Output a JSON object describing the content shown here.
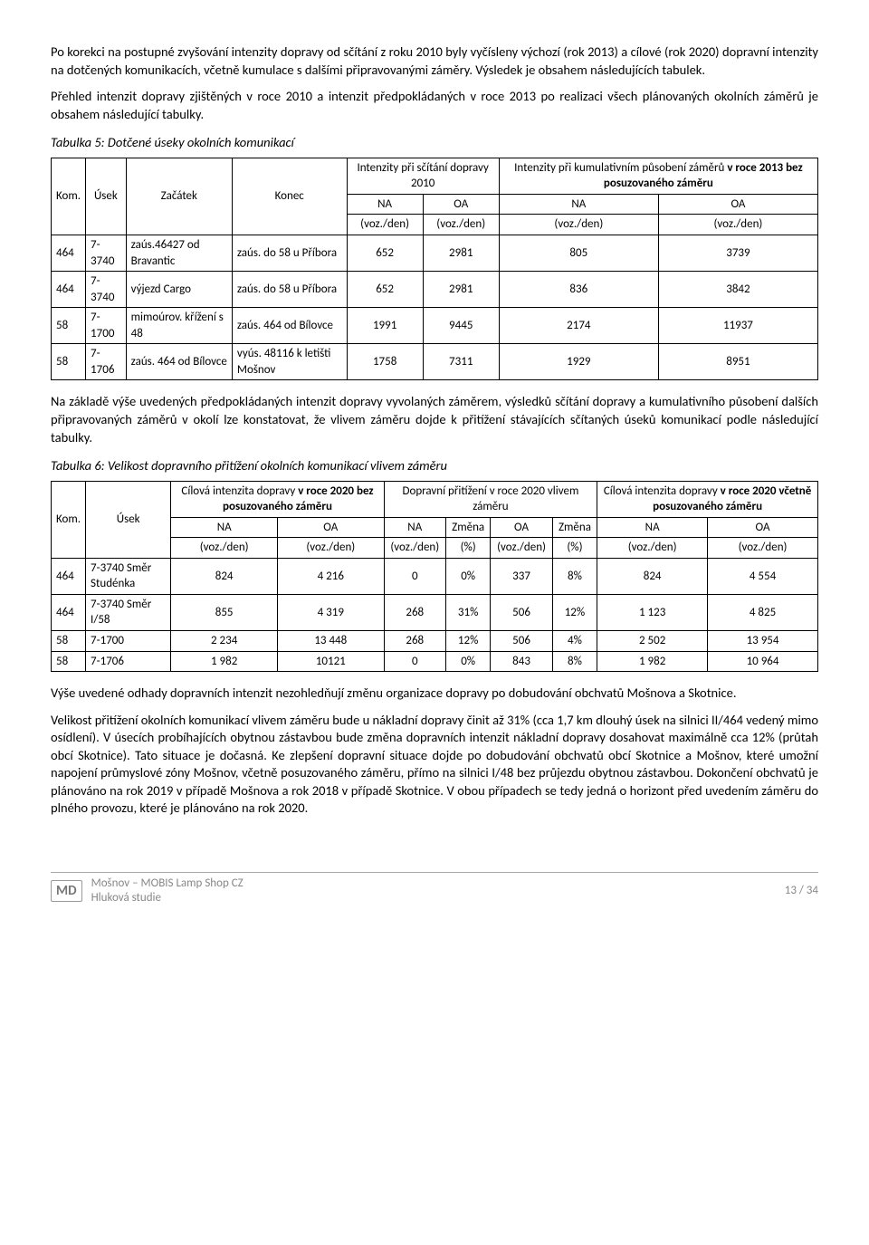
{
  "para1": "Po korekci na postupné zvyšování intenzity dopravy od sčítání z roku 2010 byly vyčísleny výchozí (rok 2013) a cílové (rok 2020) dopravní intenzity na dotčených komunikacích, včetně kumulace s dalšími připravovanými záměry. Výsledek je obsahem následujících tabulek.",
  "para2": "Přehled intenzit dopravy zjištěných v roce 2010 a intenzit předpokládaných v roce 2013 po realizaci všech plánovaných okolních záměrů je obsahem následující tabulky.",
  "table5_title": "Tabulka 5: Dotčené úseky okolních komunikací",
  "t5": {
    "h_kom": "Kom.",
    "h_usek": "Úsek",
    "h_zac": "Začátek",
    "h_kon": "Konec",
    "h_int2010": "Intenzity při sčítání dopravy 2010",
    "h_int2013_a": "Intenzity při kumulativním působení záměrů",
    "h_int2013_b": "v roce 2013 bez posuzovaného záměru",
    "na": "NA",
    "oa": "OA",
    "unit": "(voz./den)",
    "rows": [
      {
        "kom": "464",
        "usek": "7-3740",
        "zac": "zaús.46427 od Bravantic",
        "kon": "zaús. do 58 u Příbora",
        "na1": "652",
        "oa1": "2981",
        "na2": "805",
        "oa2": "3739"
      },
      {
        "kom": "464",
        "usek": "7-3740",
        "zac": "výjezd Cargo",
        "kon": "zaús. do 58 u Příbora",
        "na1": "652",
        "oa1": "2981",
        "na2": "836",
        "oa2": "3842"
      },
      {
        "kom": "58",
        "usek": "7-1700",
        "zac": "mimoúrov. křížení s 48",
        "kon": "zaús. 464 od Bílovce",
        "na1": "1991",
        "oa1": "9445",
        "na2": "2174",
        "oa2": "11937"
      },
      {
        "kom": "58",
        "usek": "7-1706",
        "zac": "zaús. 464 od Bílovce",
        "kon": "vyús. 48116 k letišti Mošnov",
        "na1": "1758",
        "oa1": "7311",
        "na2": "1929",
        "oa2": "8951"
      }
    ]
  },
  "para3": "Na základě výše uvedených předpokládaných intenzit dopravy vyvolaných záměrem, výsledků sčítání dopravy a kumulativního působení dalších připravovaných záměrů v okolí lze konstatovat, že vlivem záměru dojde k přitížení stávajících sčítaných úseků komunikací podle následující tabulky.",
  "table6_title": "Tabulka 6: Velikost dopravního přitížení okolních komunikací vlivem záměru",
  "t6": {
    "h_kom": "Kom.",
    "h_usek": "Úsek",
    "h_cil_bez_a": "Cílová intenzita dopravy ",
    "h_cil_bez_b": "v roce 2020 bez posuzovaného záměru",
    "h_prit": "Dopravní přitížení v roce 2020 vlivem záměru",
    "h_cil_vc_a": "Cílová intenzita dopravy ",
    "h_cil_vc_b": "v roce 2020 včetně posuzovaného záměru",
    "na": "NA",
    "oa": "OA",
    "zmena": "Změna",
    "unit_voz": "(voz./den)",
    "unit_pct": "(%)",
    "rows": [
      {
        "kom": "464",
        "usek": "7-3740 Směr Studénka",
        "na1": "824",
        "oa1": "4 216",
        "na2": "0",
        "zm1": "0%",
        "oa2": "337",
        "zm2": "8%",
        "na3": "824",
        "oa3": "4 554"
      },
      {
        "kom": "464",
        "usek": "7-3740 Směr I/58",
        "na1": "855",
        "oa1": "4 319",
        "na2": "268",
        "zm1": "31%",
        "oa2": "506",
        "zm2": "12%",
        "na3": "1 123",
        "oa3": "4 825"
      },
      {
        "kom": "58",
        "usek": "7-1700",
        "na1": "2 234",
        "oa1": "13 448",
        "na2": "268",
        "zm1": "12%",
        "oa2": "506",
        "zm2": "4%",
        "na3": "2 502",
        "oa3": "13 954"
      },
      {
        "kom": "58",
        "usek": "7-1706",
        "na1": "1 982",
        "oa1": "10121",
        "na2": "0",
        "zm1": "0%",
        "oa2": "843",
        "zm2": "8%",
        "na3": "1 982",
        "oa3": "10 964"
      }
    ]
  },
  "para4": "Výše uvedené odhady dopravních intenzit nezohledňují změnu organizace dopravy po dobudování obchvatů Mošnova a Skotnice.",
  "para5": "Velikost přitížení okolních komunikací vlivem záměru bude u nákladní dopravy činit až 31% (cca 1,7 km dlouhý úsek na silnici II/464 vedený mimo osídlení). V úsecích probíhajících obytnou zástavbou bude změna dopravních intenzit nákladní dopravy dosahovat maximálně cca 12% (průtah obcí Skotnice). Tato situace je dočasná. Ke zlepšení dopravní situace dojde po dobudování obchvatů obcí Skotnice a Mošnov, které umožní napojení průmyslové zóny Mošnov, včetně posuzovaného záměru, přímo na silnici I/48 bez průjezdu obytnou zástavbou. Dokončení obchvatů je plánováno na rok 2019 v případě Mošnova a rok 2018 v případě Skotnice. V obou případech se tedy jedná o horizont před uvedením záměru do plného provozu, které je plánováno na rok 2020.",
  "footer": {
    "logo": "MD",
    "line1": "Mošnov – MOBIS Lamp Shop CZ",
    "line2": "Hluková studie",
    "page": "13 / 34"
  }
}
